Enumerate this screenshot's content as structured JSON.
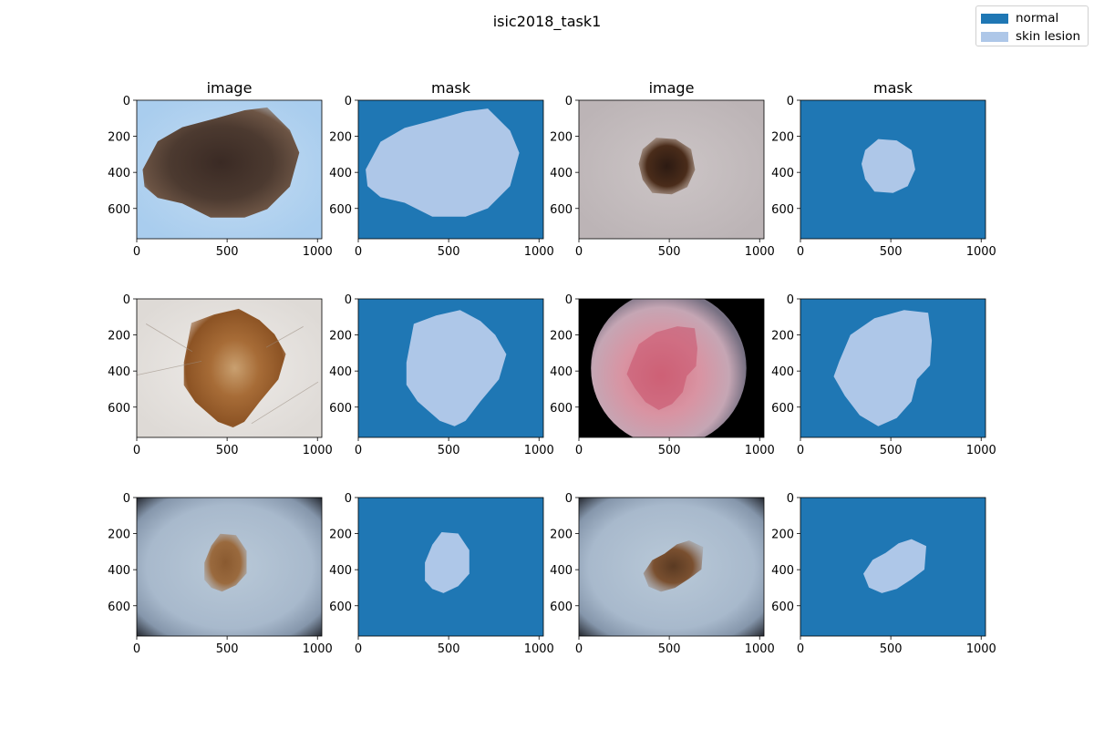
{
  "figure": {
    "title": "isic2018_task1"
  },
  "legend": {
    "placement": "top-right",
    "items": [
      {
        "label": "normal",
        "color": "#1f77b4"
      },
      {
        "label": "skin lesion",
        "color": "#aec7e8"
      }
    ]
  },
  "chart_data": [
    {
      "type": "image",
      "title": "image",
      "xlim": [
        0,
        1024
      ],
      "ylim": [
        768,
        0
      ],
      "xticks": [
        0,
        500,
        1000
      ],
      "yticks": [
        0,
        200,
        400,
        600
      ],
      "content": "dermoscopy-large-dark-lesion"
    },
    {
      "type": "heatmap",
      "title": "mask",
      "xlim": [
        0,
        1024
      ],
      "ylim": [
        768,
        0
      ],
      "xticks": [
        0,
        500,
        1000
      ],
      "yticks": [
        0,
        200,
        400,
        600
      ],
      "classes": [
        "normal",
        "skin lesion"
      ],
      "content": "mask-large-lesion"
    },
    {
      "type": "image",
      "title": "image",
      "xlim": [
        0,
        1024
      ],
      "ylim": [
        768,
        0
      ],
      "xticks": [
        0,
        500,
        1000
      ],
      "yticks": [
        0,
        200,
        400,
        600
      ],
      "content": "dermoscopy-small-dark-lesion"
    },
    {
      "type": "heatmap",
      "title": "mask",
      "xlim": [
        0,
        1024
      ],
      "ylim": [
        768,
        0
      ],
      "xticks": [
        0,
        500,
        1000
      ],
      "yticks": [
        0,
        200,
        400,
        600
      ],
      "classes": [
        "normal",
        "skin lesion"
      ],
      "content": "mask-small-lesion"
    },
    {
      "type": "image",
      "title": "",
      "xlim": [
        0,
        1024
      ],
      "ylim": [
        768,
        0
      ],
      "xticks": [
        0,
        500,
        1000
      ],
      "yticks": [
        0,
        200,
        400,
        600
      ],
      "content": "dermoscopy-brown-lesion-hair"
    },
    {
      "type": "heatmap",
      "title": "",
      "xlim": [
        0,
        1024
      ],
      "ylim": [
        768,
        0
      ],
      "xticks": [
        0,
        500,
        1000
      ],
      "yticks": [
        0,
        200,
        400,
        600
      ],
      "classes": [
        "normal",
        "skin lesion"
      ],
      "content": "mask-brown-lesion"
    },
    {
      "type": "image",
      "title": "",
      "xlim": [
        0,
        1024
      ],
      "ylim": [
        768,
        0
      ],
      "xticks": [
        0,
        500,
        1000
      ],
      "yticks": [
        0,
        200,
        400,
        600
      ],
      "content": "dermoscopy-circular-red-lesion"
    },
    {
      "type": "heatmap",
      "title": "",
      "xlim": [
        0,
        1024
      ],
      "ylim": [
        768,
        0
      ],
      "xticks": [
        0,
        500,
        1000
      ],
      "yticks": [
        0,
        200,
        400,
        600
      ],
      "classes": [
        "normal",
        "skin lesion"
      ],
      "content": "mask-circular-lesion"
    },
    {
      "type": "image",
      "title": "",
      "xlim": [
        0,
        1024
      ],
      "ylim": [
        768,
        0
      ],
      "xticks": [
        0,
        500,
        1000
      ],
      "yticks": [
        0,
        200,
        400,
        600
      ],
      "content": "dermoscopy-small-brown-lesion-vignette"
    },
    {
      "type": "heatmap",
      "title": "",
      "xlim": [
        0,
        1024
      ],
      "ylim": [
        768,
        0
      ],
      "xticks": [
        0,
        500,
        1000
      ],
      "yticks": [
        0,
        200,
        400,
        600
      ],
      "classes": [
        "normal",
        "skin lesion"
      ],
      "content": "mask-small-brown-lesion"
    },
    {
      "type": "image",
      "title": "",
      "xlim": [
        0,
        1024
      ],
      "ylim": [
        768,
        0
      ],
      "xticks": [
        0,
        500,
        1000
      ],
      "yticks": [
        0,
        200,
        400,
        600
      ],
      "content": "dermoscopy-brown-lesion-vignette"
    },
    {
      "type": "heatmap",
      "title": "",
      "xlim": [
        0,
        1024
      ],
      "ylim": [
        768,
        0
      ],
      "xticks": [
        0,
        500,
        1000
      ],
      "yticks": [
        0,
        200,
        400,
        600
      ],
      "classes": [
        "normal",
        "skin lesion"
      ],
      "content": "mask-brown-lesion-2"
    }
  ]
}
